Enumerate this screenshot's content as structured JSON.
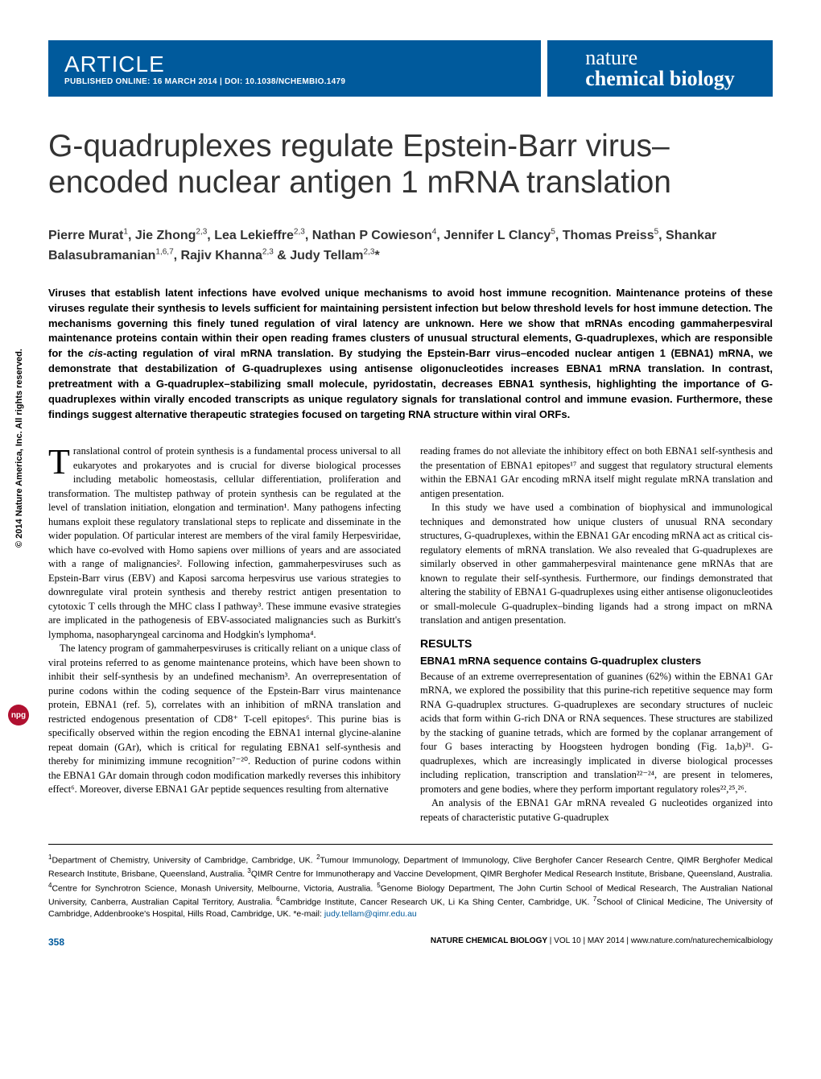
{
  "header": {
    "article_type": "ARTICLE",
    "pub_info": "PUBLISHED ONLINE: 16 MARCH 2014 | DOI: 10.1038/NCHEMBIO.1479",
    "journal_line1": "nature",
    "journal_line2": "chemical biology"
  },
  "title": "G-quadruplexes regulate Epstein-Barr virus–encoded nuclear antigen 1 mRNA translation",
  "authors_html": "Pierre Murat<sup>1</sup>, Jie Zhong<sup>2,3</sup>, Lea Lekieffre<sup>2,3</sup>, Nathan P Cowieson<sup>4</sup>, Jennifer L Clancy<sup>5</sup>, Thomas Preiss<sup>5</sup>, Shankar Balasubramanian<sup>1,6,7</sup>, Rajiv Khanna<sup>2,3</sup> &amp; Judy Tellam<sup>2,3</sup>*",
  "abstract_html": "Viruses that establish latent infections have evolved unique mechanisms to avoid host immune recognition. Maintenance proteins of these viruses regulate their synthesis to levels sufficient for maintaining persistent infection but below threshold levels for host immune detection. The mechanisms governing this finely tuned regulation of viral latency are unknown. Here we show that mRNAs encoding gammaherpesviral maintenance proteins contain within their open reading frames clusters of unusual structural elements, G-quadruplexes, which are responsible for the <span class=\"italic\">cis</span>-acting regulation of viral mRNA translation. By studying the Epstein-Barr virus–encoded nuclear antigen 1 (EBNA1) mRNA, we demonstrate that destabilization of G-quadruplexes using antisense oligonucleotides increases EBNA1 mRNA translation. In contrast, pretreatment with a G-quadruplex–stabilizing small molecule, pyridostatin, decreases EBNA1 synthesis, highlighting the importance of G-quadruplexes within virally encoded transcripts as unique regulatory signals for translational control and immune evasion. Furthermore, these findings suggest alternative therapeutic strategies focused on targeting RNA structure within viral ORFs.",
  "body": {
    "col1": {
      "p1_dropcap": "T",
      "p1": "ranslational control of protein synthesis is a fundamental process universal to all eukaryotes and prokaryotes and is crucial for diverse biological processes including metabolic homeostasis, cellular differentiation, proliferation and transformation. The multistep pathway of protein synthesis can be regulated at the level of translation initiation, elongation and termination¹. Many pathogens infecting humans exploit these regulatory translational steps to replicate and disseminate in the wider population. Of particular interest are members of the viral family Herpesviridae, which have co-evolved with Homo sapiens over millions of years and are associated with a range of malignancies². Following infection, gammaherpesviruses such as Epstein-Barr virus (EBV) and Kaposi sarcoma herpesvirus use various strategies to downregulate viral protein synthesis and thereby restrict antigen presentation to cytotoxic T cells through the MHC class I pathway³. These immune evasive strategies are implicated in the pathogenesis of EBV-associated malignancies such as Burkitt's lymphoma, nasopharyngeal carcinoma and Hodgkin's lymphoma⁴.",
      "p2": "The latency program of gammaherpesviruses is critically reliant on a unique class of viral proteins referred to as genome maintenance proteins, which have been shown to inhibit their self-synthesis by an undefined mechanism³. An overrepresentation of purine codons within the coding sequence of the Epstein-Barr virus maintenance protein, EBNA1 (ref. 5), correlates with an inhibition of mRNA translation and restricted endogenous presentation of CD8⁺ T-cell epitopes⁶. This purine bias is specifically observed within the region encoding the EBNA1 internal glycine-alanine repeat domain (GAr), which is critical for regulating EBNA1 self-synthesis and thereby for minimizing immune recognition⁷⁻²⁰. Reduction of purine codons within the EBNA1 GAr domain through codon modification markedly reverses this inhibitory effect⁶. Moreover, diverse EBNA1 GAr peptide sequences resulting from alternative"
    },
    "col2": {
      "p1": "reading frames do not alleviate the inhibitory effect on both EBNA1 self-synthesis and the presentation of EBNA1 epitopes¹⁷ and suggest that regulatory structural elements within the EBNA1 GAr encoding mRNA itself might regulate mRNA translation and antigen presentation.",
      "p2": "In this study we have used a combination of biophysical and immunological techniques and demonstrated how unique clusters of unusual RNA secondary structures, G-quadruplexes, within the EBNA1 GAr encoding mRNA act as critical cis-regulatory elements of mRNA translation. We also revealed that G-quadruplexes are similarly observed in other gammaherpesviral maintenance gene mRNAs that are known to regulate their self-synthesis. Furthermore, our findings demonstrated that altering the stability of EBNA1 G-quadruplexes using either antisense oligonucleotides or small-molecule G-quadruplex–binding ligands had a strong impact on mRNA translation and antigen presentation.",
      "results_heading": "RESULTS",
      "subsection": "EBNA1 mRNA sequence contains G-quadruplex clusters",
      "p3": "Because of an extreme overrepresentation of guanines (62%) within the EBNA1 GAr mRNA, we explored the possibility that this purine-rich repetitive sequence may form RNA G-quadruplex structures. G-quadruplexes are secondary structures of nucleic acids that form within G-rich DNA or RNA sequences. These structures are stabilized by the stacking of guanine tetrads, which are formed by the coplanar arrangement of four G bases interacting by Hoogsteen hydrogen bonding (Fig. 1a,b)²¹. G-quadruplexes, which are increasingly implicated in diverse biological processes including replication, transcription and translation²²⁻²⁴, are present in telomeres, promoters and gene bodies, where they perform important regulatory roles²²,²⁵,²⁶.",
      "p4": "An analysis of the EBNA1 GAr mRNA revealed G nucleotides organized into repeats of characteristic putative G-quadruplex"
    }
  },
  "affiliations_html": "<sup>1</sup>Department of Chemistry, University of Cambridge, Cambridge, UK. <sup>2</sup>Tumour Immunology, Department of Immunology, Clive Berghofer Cancer Research Centre, QIMR Berghofer Medical Research Institute, Brisbane, Queensland, Australia. <sup>3</sup>QIMR Centre for Immunotherapy and Vaccine Development, QIMR Berghofer Medical Research Institute, Brisbane, Queensland, Australia. <sup>4</sup>Centre for Synchrotron Science, Monash University, Melbourne, Victoria, Australia. <sup>5</sup>Genome Biology Department, The John Curtin School of Medical Research, The Australian National University, Canberra, Australian Capital Territory, Australia. <sup>6</sup>Cambridge Institute, Cancer Research UK, Li Ka Shing Center, Cambridge, UK. <sup>7</sup>School of Clinical Medicine, The University of Cambridge, Addenbrooke's Hospital, Hills Road, Cambridge, UK. *e-mail: <span class=\"email\">judy.tellam@qimr.edu.au</span>",
  "footer": {
    "page_num": "358",
    "journal": "NATURE CHEMICAL BIOLOGY",
    "citation": " | VOL 10 | MAY 2014 | www.nature.com/naturechemicalbiology"
  },
  "side": {
    "copyright": "© 2014 Nature America, Inc. All rights reserved.",
    "npg": "npg"
  },
  "colors": {
    "brand_blue": "#005a9c",
    "npg_red": "#b01030",
    "text": "#000000",
    "title_text": "#333333"
  }
}
